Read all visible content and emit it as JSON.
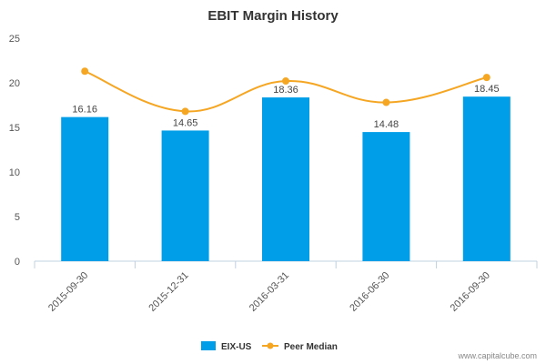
{
  "chart_data": {
    "type": "bar",
    "title": "EBIT Margin History",
    "categories": [
      "2015-09-30",
      "2015-12-31",
      "2016-03-31",
      "2016-06-30",
      "2016-09-30"
    ],
    "series": [
      {
        "name": "EIX-US",
        "kind": "bar",
        "color": "#009ee9",
        "values": [
          16.16,
          14.65,
          18.36,
          14.48,
          18.45
        ],
        "labels": [
          "16.16",
          "14.65",
          "18.36",
          "14.48",
          "18.45"
        ]
      },
      {
        "name": "Peer Median",
        "kind": "line",
        "color": "#f5a623",
        "values": [
          21.3,
          16.8,
          20.2,
          17.8,
          20.6
        ]
      }
    ],
    "ylim": [
      0,
      25
    ],
    "yticks": [
      0,
      5,
      10,
      15,
      20,
      25
    ],
    "ytick_labels": [
      "0",
      "5",
      "10",
      "15",
      "20",
      "25"
    ],
    "xlabel": "",
    "ylabel": "",
    "grid": false,
    "legend_position": "bottom-center"
  },
  "watermark": "www.capitalcube.com"
}
